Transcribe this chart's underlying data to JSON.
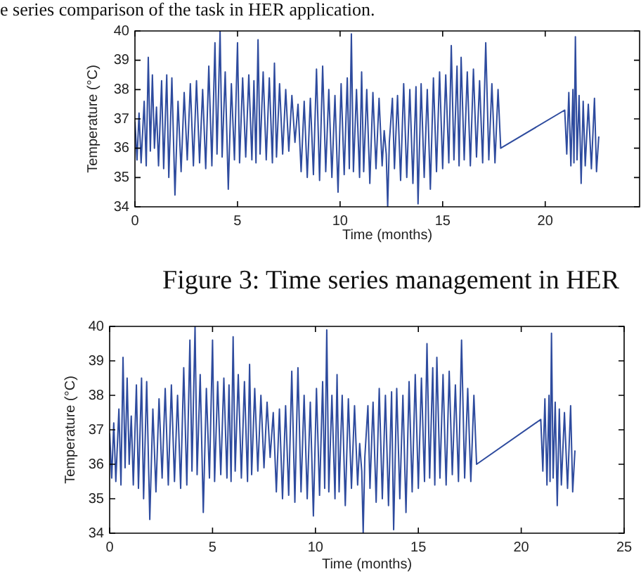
{
  "chart_data": [
    {
      "type": "line",
      "annotations": [
        "e series comparison of the task in HER application.",
        "Figure 3: Time series management in HER"
      ],
      "xlabel": "Time (months)",
      "ylabel": "Temperature (°C)",
      "color": "#2e4b9e",
      "marker": "none",
      "xlim": [
        0,
        24.6
      ],
      "xticks": [
        0,
        5,
        10,
        15,
        20
      ],
      "ylim": [
        34,
        40
      ],
      "yticks": [
        34,
        35,
        36,
        37,
        38,
        39,
        40
      ],
      "x": [
        0,
        0.1,
        0.2,
        0.3,
        0.45,
        0.55,
        0.65,
        0.75,
        0.85,
        0.95,
        1.05,
        1.15,
        1.3,
        1.4,
        1.55,
        1.65,
        1.8,
        1.95,
        2.1,
        2.25,
        2.4,
        2.55,
        2.7,
        2.85,
        3,
        3.15,
        3.3,
        3.45,
        3.6,
        3.75,
        3.9,
        4,
        4.15,
        4.25,
        4.4,
        4.55,
        4.7,
        4.85,
        5,
        5.1,
        5.25,
        5.4,
        5.55,
        5.7,
        5.8,
        5.9,
        6,
        6.1,
        6.25,
        6.4,
        6.55,
        6.7,
        6.8,
        6.9,
        7.05,
        7.2,
        7.35,
        7.5,
        7.65,
        7.8,
        7.95,
        8.1,
        8.25,
        8.4,
        8.55,
        8.7,
        8.85,
        9,
        9.15,
        9.3,
        9.45,
        9.6,
        9.75,
        9.9,
        10.05,
        10.2,
        10.35,
        10.45,
        10.55,
        10.65,
        10.8,
        10.95,
        11.05,
        11.15,
        11.3,
        11.45,
        11.6,
        11.75,
        11.9,
        12.05,
        12.15,
        12.25,
        12.32,
        12.4,
        12.55,
        12.65,
        12.8,
        12.95,
        13.1,
        13.25,
        13.4,
        13.55,
        13.7,
        13.8,
        13.95,
        14.1,
        14.25,
        14.4,
        14.55,
        14.7,
        14.85,
        15,
        15.15,
        15.3,
        15.42,
        15.55,
        15.7,
        15.8,
        15.9,
        16.05,
        16.2,
        16.35,
        16.5,
        16.65,
        16.8,
        16.95,
        17.1,
        17.25,
        17.4,
        17.55,
        17.7,
        17.83,
        20.95,
        21.05,
        21.15,
        21.25,
        21.35,
        21.4,
        21.47,
        21.55,
        21.65,
        21.75,
        21.85,
        21.95,
        22.1,
        22.25,
        22.4,
        22.5,
        22.61
      ],
      "values": [
        36.9,
        35.6,
        37.2,
        35.5,
        37.6,
        35.4,
        39.1,
        35.9,
        38.5,
        36.0,
        37.4,
        35.4,
        38.3,
        35.3,
        38.5,
        35.0,
        38.4,
        34.4,
        37.6,
        35.2,
        37.9,
        35.6,
        38.2,
        35.4,
        38.3,
        35.5,
        38.0,
        35.3,
        38.8,
        35.4,
        39.6,
        35.8,
        40.0,
        35.7,
        38.6,
        34.6,
        38.2,
        35.6,
        39.6,
        35.5,
        38.4,
        35.7,
        38.5,
        35.6,
        38.3,
        35.5,
        39.7,
        35.8,
        38.6,
        35.6,
        38.4,
        35.5,
        38.9,
        35.7,
        38.2,
        35.8,
        38.0,
        35.9,
        37.8,
        36.2,
        37.5,
        35.2,
        37.6,
        35.0,
        37.7,
        35.1,
        38.7,
        34.9,
        38.8,
        35.2,
        38.0,
        35.0,
        37.8,
        34.5,
        38.2,
        35.1,
        38.4,
        35.3,
        39.9,
        35.2,
        38.0,
        35.0,
        38.6,
        35.2,
        38.0,
        34.8,
        37.9,
        35.3,
        37.7,
        35.4,
        36.6,
        35.8,
        34.0,
        36.2,
        37.7,
        35.3,
        37.8,
        34.9,
        38.2,
        35.0,
        38.0,
        34.8,
        38.1,
        34.1,
        38.2,
        35.0,
        38.0,
        34.6,
        38.4,
        35.2,
        38.6,
        35.3,
        38.5,
        35.5,
        39.5,
        35.6,
        38.8,
        35.4,
        39.1,
        35.6,
        38.6,
        35.4,
        38.7,
        35.7,
        38.3,
        35.5,
        39.6,
        35.6,
        38.2,
        35.5,
        38.0,
        36.0,
        37.3,
        35.8,
        37.9,
        35.4,
        38.0,
        35.5,
        39.8,
        35.6,
        37.8,
        34.8,
        37.6,
        35.4,
        37.5,
        35.3,
        37.7,
        35.2,
        36.4
      ]
    },
    {
      "type": "line",
      "xlabel": "Time (months)",
      "ylabel": "Temperature (°C)",
      "color": "#2e4b9e",
      "marker": "none",
      "xlim": [
        0,
        25
      ],
      "xticks": [
        0,
        5,
        10,
        15,
        20,
        25
      ],
      "ylim": [
        34,
        40
      ],
      "yticks": [
        34,
        35,
        36,
        37,
        38,
        39,
        40
      ],
      "x": [
        0,
        0.1,
        0.2,
        0.3,
        0.45,
        0.55,
        0.65,
        0.75,
        0.85,
        0.95,
        1.05,
        1.15,
        1.3,
        1.4,
        1.55,
        1.65,
        1.8,
        1.95,
        2.1,
        2.25,
        2.4,
        2.55,
        2.7,
        2.85,
        3,
        3.15,
        3.3,
        3.45,
        3.6,
        3.75,
        3.9,
        4,
        4.15,
        4.25,
        4.4,
        4.55,
        4.7,
        4.85,
        5,
        5.1,
        5.25,
        5.4,
        5.55,
        5.7,
        5.8,
        5.9,
        6,
        6.1,
        6.25,
        6.4,
        6.55,
        6.7,
        6.8,
        6.9,
        7.05,
        7.2,
        7.35,
        7.5,
        7.65,
        7.8,
        7.95,
        8.1,
        8.25,
        8.4,
        8.55,
        8.7,
        8.85,
        9,
        9.15,
        9.3,
        9.45,
        9.6,
        9.75,
        9.9,
        10.05,
        10.2,
        10.35,
        10.45,
        10.55,
        10.65,
        10.8,
        10.95,
        11.05,
        11.15,
        11.3,
        11.45,
        11.6,
        11.75,
        11.9,
        12.05,
        12.15,
        12.25,
        12.32,
        12.4,
        12.55,
        12.65,
        12.8,
        12.95,
        13.1,
        13.25,
        13.4,
        13.55,
        13.7,
        13.8,
        13.95,
        14.1,
        14.25,
        14.4,
        14.55,
        14.7,
        14.85,
        15,
        15.15,
        15.3,
        15.42,
        15.55,
        15.7,
        15.8,
        15.9,
        16.05,
        16.2,
        16.35,
        16.5,
        16.65,
        16.8,
        16.95,
        17.1,
        17.25,
        17.4,
        17.55,
        17.7,
        17.83,
        20.95,
        21.05,
        21.15,
        21.25,
        21.35,
        21.4,
        21.47,
        21.55,
        21.65,
        21.75,
        21.85,
        21.95,
        22.1,
        22.25,
        22.4,
        22.5,
        22.61
      ],
      "values": [
        36.9,
        35.6,
        37.2,
        35.5,
        37.6,
        35.4,
        39.1,
        35.9,
        38.5,
        36.0,
        37.4,
        35.4,
        38.3,
        35.3,
        38.5,
        35.0,
        38.4,
        34.4,
        37.6,
        35.2,
        37.9,
        35.6,
        38.2,
        35.4,
        38.3,
        35.5,
        38.0,
        35.3,
        38.8,
        35.4,
        39.6,
        35.8,
        40.0,
        35.7,
        38.6,
        34.6,
        38.2,
        35.6,
        39.6,
        35.5,
        38.4,
        35.7,
        38.5,
        35.6,
        38.3,
        35.5,
        39.7,
        35.8,
        38.6,
        35.6,
        38.4,
        35.5,
        38.9,
        35.7,
        38.2,
        35.8,
        38.0,
        35.9,
        37.8,
        36.2,
        37.5,
        35.2,
        37.6,
        35.0,
        37.7,
        35.1,
        38.7,
        34.9,
        38.8,
        35.2,
        38.0,
        35.0,
        37.8,
        34.5,
        38.2,
        35.1,
        38.4,
        35.3,
        39.9,
        35.2,
        38.0,
        35.0,
        38.6,
        35.2,
        38.0,
        34.8,
        37.9,
        35.3,
        37.7,
        35.4,
        36.6,
        35.8,
        34.0,
        36.2,
        37.7,
        35.3,
        37.8,
        34.9,
        38.2,
        35.0,
        38.0,
        34.8,
        38.1,
        34.1,
        38.2,
        35.0,
        38.0,
        34.6,
        38.4,
        35.2,
        38.6,
        35.3,
        38.5,
        35.5,
        39.5,
        35.6,
        38.8,
        35.4,
        39.1,
        35.6,
        38.6,
        35.4,
        38.7,
        35.7,
        38.3,
        35.5,
        39.6,
        35.6,
        38.2,
        35.5,
        38.0,
        36.0,
        37.3,
        35.8,
        37.9,
        35.4,
        38.0,
        35.5,
        39.8,
        35.6,
        37.8,
        34.8,
        37.6,
        35.4,
        37.5,
        35.3,
        37.7,
        35.2,
        36.4
      ]
    }
  ]
}
